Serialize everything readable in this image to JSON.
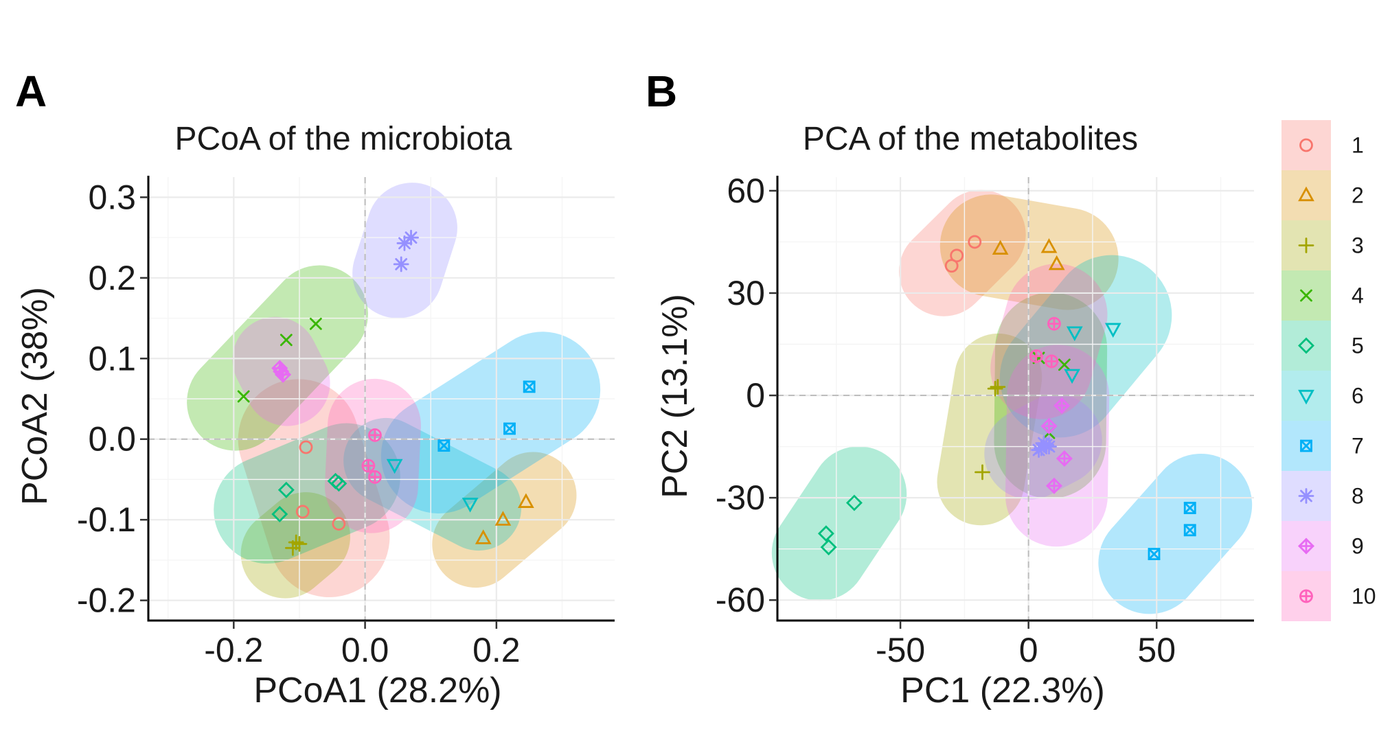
{
  "panels": {
    "A": {
      "letter": "A"
    },
    "B": {
      "letter": "B"
    }
  },
  "legend": {
    "groups": [
      "1",
      "2",
      "3",
      "4",
      "5",
      "6",
      "7",
      "8",
      "9",
      "10"
    ],
    "colors": [
      "#f8766d",
      "#d89000",
      "#a3a500",
      "#39b600",
      "#00bf7d",
      "#00bfc4",
      "#00b0f6",
      "#9590ff",
      "#e76bf3",
      "#ff62bc"
    ],
    "shapes": [
      "circle",
      "triangle",
      "plus",
      "cross",
      "diamond",
      "triangle-down",
      "square-x",
      "asterisk",
      "diamond-plus",
      "circle-plus"
    ]
  },
  "chart_data": [
    {
      "type": "scatter",
      "title": "PCoA of the microbiota",
      "xlabel": "PCoA1 (28.2%)",
      "ylabel": "PCoA2 (38%)",
      "xlim": [
        -0.33,
        0.38
      ],
      "ylim": [
        -0.225,
        0.325
      ],
      "xticks": [
        -0.2,
        0.0,
        0.2
      ],
      "xtick_labels": [
        "-0.2",
        "0.0",
        "0.2"
      ],
      "yticks": [
        -0.2,
        -0.1,
        0.0,
        0.1,
        0.2,
        0.3
      ],
      "ytick_labels": [
        "-0.2",
        "-0.1",
        "0.0",
        "0.1",
        "0.2",
        "0.3"
      ],
      "grid": true,
      "zero_lines": true,
      "series": [
        {
          "name": "1",
          "x": [
            -0.09,
            -0.095,
            -0.04
          ],
          "y": [
            -0.01,
            -0.09,
            -0.105
          ]
        },
        {
          "name": "2",
          "x": [
            0.18,
            0.21,
            0.245
          ],
          "y": [
            -0.123,
            -0.1,
            -0.078
          ]
        },
        {
          "name": "3",
          "x": [
            -0.11,
            -0.105,
            -0.1
          ],
          "y": [
            -0.135,
            -0.128,
            -0.13
          ]
        },
        {
          "name": "4",
          "x": [
            -0.185,
            -0.12,
            -0.075
          ],
          "y": [
            0.053,
            0.123,
            0.143
          ]
        },
        {
          "name": "5",
          "x": [
            -0.13,
            -0.12,
            -0.04,
            -0.045
          ],
          "y": [
            -0.093,
            -0.063,
            -0.055,
            -0.052
          ]
        },
        {
          "name": "6",
          "x": [
            0.045,
            0.16
          ],
          "y": [
            -0.032,
            -0.08
          ]
        },
        {
          "name": "7",
          "x": [
            0.12,
            0.22,
            0.25
          ],
          "y": [
            -0.008,
            0.013,
            0.065
          ]
        },
        {
          "name": "8",
          "x": [
            0.055,
            0.06,
            0.07
          ],
          "y": [
            0.217,
            0.243,
            0.25
          ]
        },
        {
          "name": "9",
          "x": [
            -0.13,
            -0.125,
            -0.128
          ],
          "y": [
            0.088,
            0.08,
            0.084
          ]
        },
        {
          "name": "10",
          "x": [
            0.015,
            0.005,
            0.015
          ],
          "y": [
            0.005,
            -0.033,
            -0.047
          ]
        }
      ]
    },
    {
      "type": "scatter",
      "title": "PCA of the metabolites",
      "xlabel": "PC1 (22.3%)",
      "ylabel": "PC2 (13.1%)",
      "xlim": [
        -98,
        88
      ],
      "ylim": [
        -66,
        64
      ],
      "xticks": [
        -50,
        0,
        50
      ],
      "xtick_labels": [
        "-50",
        "0",
        "50"
      ],
      "yticks": [
        -60,
        -30,
        0,
        30,
        60
      ],
      "ytick_labels": [
        "-60",
        "-30",
        "0",
        "30",
        "60"
      ],
      "grid": true,
      "zero_lines": true,
      "series": [
        {
          "name": "1",
          "x": [
            -30,
            -28,
            -21
          ],
          "y": [
            38,
            41,
            45
          ]
        },
        {
          "name": "2",
          "x": [
            -11,
            8,
            11
          ],
          "y": [
            43,
            43.5,
            38.5
          ]
        },
        {
          "name": "3",
          "x": [
            -12,
            -18,
            -13
          ],
          "y": [
            2.5,
            -22.5,
            2
          ]
        },
        {
          "name": "4",
          "x": [
            4,
            14,
            8
          ],
          "y": [
            11,
            9,
            -11
          ]
        },
        {
          "name": "5",
          "x": [
            -68,
            -79,
            -78
          ],
          "y": [
            -31.5,
            -40.5,
            -44.5
          ]
        },
        {
          "name": "6",
          "x": [
            18,
            17,
            33
          ],
          "y": [
            18.5,
            6,
            19.5
          ]
        },
        {
          "name": "7",
          "x": [
            63,
            63,
            49
          ],
          "y": [
            -33,
            -39.5,
            -46.5
          ]
        },
        {
          "name": "8",
          "x": [
            6,
            4,
            8,
            5,
            7
          ],
          "y": [
            -14,
            -16,
            -15,
            -15.5,
            -14.5
          ]
        },
        {
          "name": "9",
          "x": [
            13,
            14,
            10,
            8
          ],
          "y": [
            -3,
            -18.5,
            -26.5,
            -9
          ]
        },
        {
          "name": "10",
          "x": [
            10,
            9,
            3
          ],
          "y": [
            21,
            10,
            11.5
          ]
        }
      ]
    }
  ]
}
